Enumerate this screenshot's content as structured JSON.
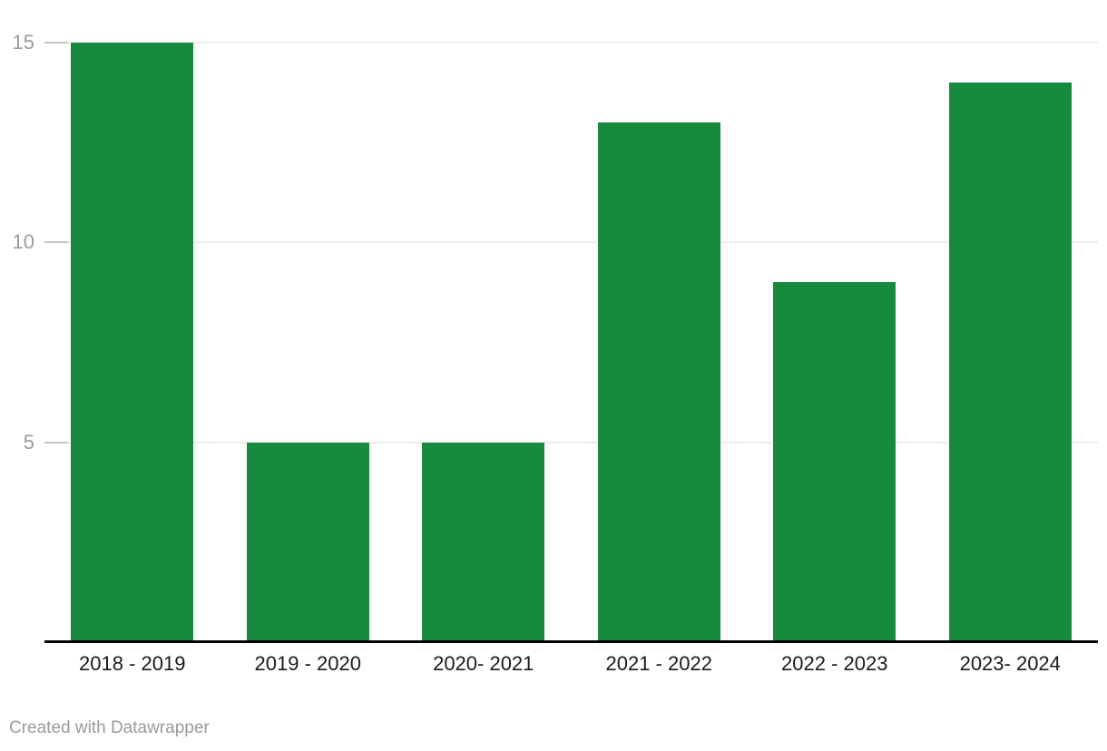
{
  "chart_data": {
    "type": "bar",
    "categories": [
      "2018 - 2019",
      "2019 - 2020",
      "2020- 2021",
      "2021 - 2022",
      "2022 - 2023",
      "2023- 2024"
    ],
    "values": [
      15,
      5,
      5,
      13,
      9,
      14
    ],
    "title": "",
    "xlabel": "",
    "ylabel": "",
    "ylim": [
      0,
      15
    ],
    "yticks": [
      5,
      10,
      15
    ],
    "grid": true,
    "legend": false,
    "colors": {
      "bar": "#188a3d",
      "gridline": "#ececec",
      "ytick_mark": "#c5c5c5",
      "ytick_label": "#9b9b9b",
      "xtick_label": "#1a1a1a",
      "axis_line": "#000000"
    }
  },
  "footer": {
    "attribution": "Created with Datawrapper",
    "color": "#9b9b9b"
  }
}
